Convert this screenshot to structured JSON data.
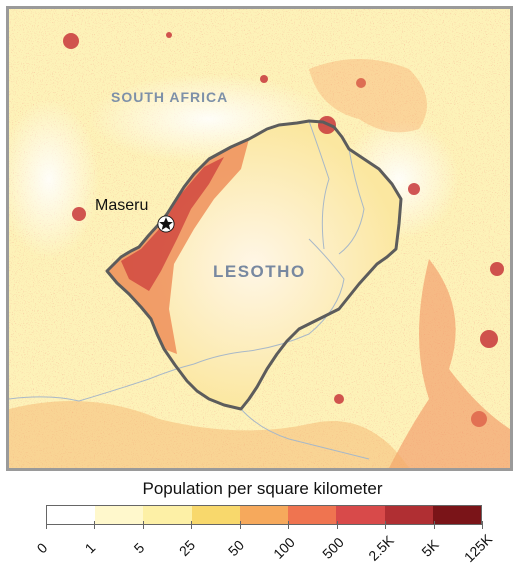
{
  "map": {
    "labels": {
      "south_africa": "SOUTH AFRICA",
      "lesotho": "LESOTHO",
      "maseru": "Maseru"
    },
    "capital_icon": "star-icon"
  },
  "legend": {
    "title": "Population per square kilometer",
    "bins": [
      "0",
      "1",
      "5",
      "25",
      "50",
      "100",
      "500",
      "2.5K",
      "5K",
      "125K"
    ],
    "colors": [
      "#ffffff",
      "#fff8cc",
      "#fdf0a6",
      "#f8d86c",
      "#f6a95c",
      "#ef7450",
      "#d84a4a",
      "#b02f33",
      "#7a1418"
    ]
  },
  "colors": {
    "border": "#5c5c5c",
    "river": "#a8b8c8",
    "background_low": "#fffdf0",
    "frame": "#9a9a9a"
  }
}
